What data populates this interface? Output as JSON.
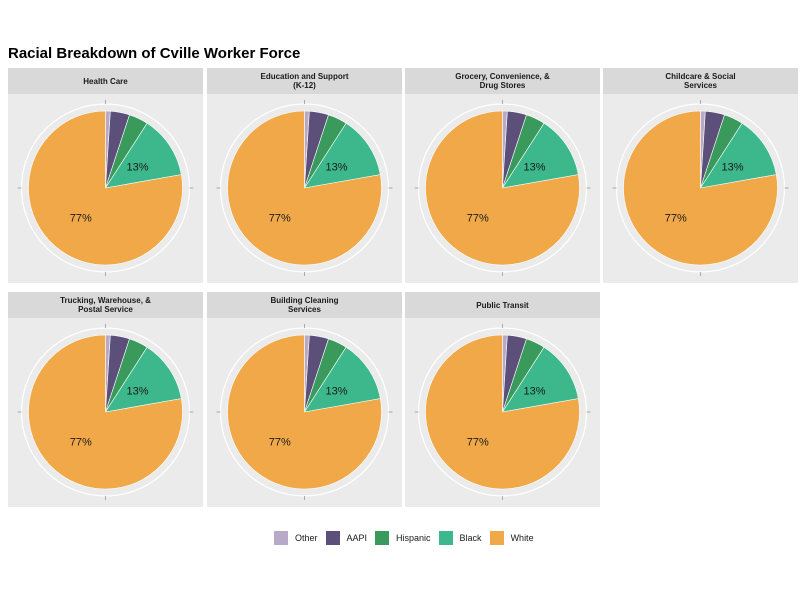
{
  "chart_data": {
    "type": "pie",
    "title": "Racial Breakdown of Cville Worker Force",
    "categories": [
      "Other",
      "AAPI",
      "Hispanic",
      "Black",
      "White"
    ],
    "colors": {
      "Other": "#b8a9c9",
      "AAPI": "#5c4f7a",
      "Hispanic": "#3a9a5c",
      "Black": "#3cb88c",
      "White": "#f0a848"
    },
    "legend_position": "bottom",
    "facets": [
      {
        "name": "Health Care",
        "values": [
          1,
          4,
          4,
          13,
          77
        ],
        "labels": [
          "",
          "",
          "",
          "13%",
          "77%"
        ]
      },
      {
        "name": "Education and Support\n(K-12)",
        "values": [
          1,
          4,
          4,
          13,
          77
        ],
        "labels": [
          "",
          "",
          "",
          "13%",
          "77%"
        ]
      },
      {
        "name": "Grocery, Convenience, &\nDrug Stores",
        "values": [
          1,
          4,
          4,
          13,
          77
        ],
        "labels": [
          "",
          "",
          "",
          "13%",
          "77%"
        ]
      },
      {
        "name": "Childcare & Social\nServices",
        "values": [
          1,
          4,
          4,
          13,
          77
        ],
        "labels": [
          "",
          "",
          "",
          "13%",
          "77%"
        ]
      },
      {
        "name": "Trucking, Warehouse, &\nPostal Service",
        "values": [
          1,
          4,
          4,
          13,
          77
        ],
        "labels": [
          "",
          "",
          "",
          "13%",
          "77%"
        ]
      },
      {
        "name": "Building Cleaning\nServices",
        "values": [
          1,
          4,
          4,
          13,
          77
        ],
        "labels": [
          "",
          "",
          "",
          "13%",
          "77%"
        ]
      },
      {
        "name": "Public Transit",
        "values": [
          1,
          4,
          4,
          13,
          77
        ],
        "labels": [
          "",
          "",
          "",
          "13%",
          "77%"
        ]
      }
    ]
  }
}
